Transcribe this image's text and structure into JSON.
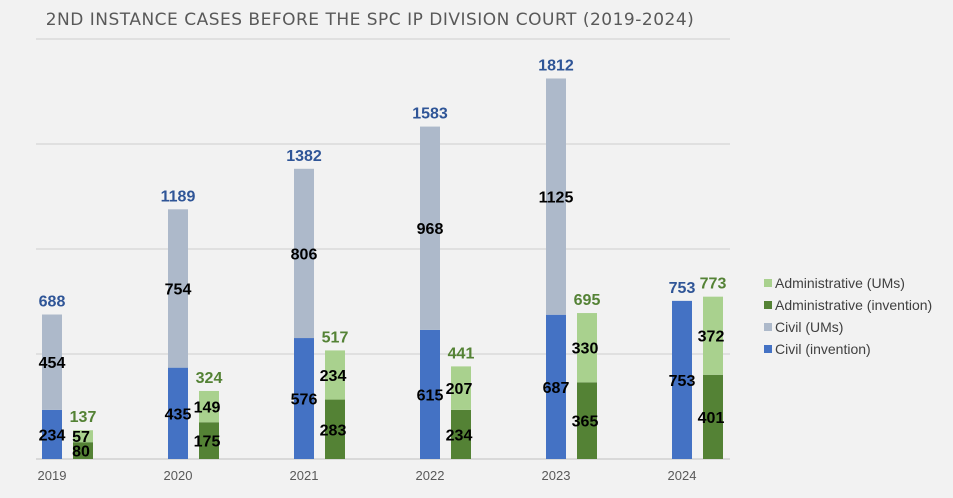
{
  "chart_data": {
    "type": "bar",
    "title": "2ND INSTANCE CASES BEFORE THE SPC IP DIVISION COURT (2019-2024)",
    "categories": [
      "2019",
      "2020",
      "2021",
      "2022",
      "2023",
      "2024"
    ],
    "ylim": [
      0,
      2000
    ],
    "grid": true,
    "legend_position": "right",
    "stacks": [
      {
        "name": "civil",
        "total_color": "#2f5597",
        "totals": [
          688,
          1189,
          1382,
          1583,
          1812,
          753
        ],
        "series": [
          {
            "name": "Civil (invention)",
            "color": "#4472c4",
            "values": [
              234,
              435,
              576,
              615,
              687,
              753
            ]
          },
          {
            "name": "Civil (UMs)",
            "color": "#adb9ca",
            "values": [
              454,
              754,
              806,
              968,
              1125,
              0
            ]
          }
        ]
      },
      {
        "name": "administrative",
        "total_color": "#548235",
        "totals": [
          137,
          324,
          517,
          441,
          695,
          773
        ],
        "series": [
          {
            "name": "Administrative (invention)",
            "color": "#548235",
            "values": [
              80,
              175,
              283,
              234,
              365,
              401
            ]
          },
          {
            "name": "Administrative (UMs)",
            "color": "#a9d18e",
            "values": [
              57,
              149,
              234,
              207,
              330,
              372
            ]
          }
        ]
      }
    ],
    "legend": [
      {
        "label": "Administrative (UMs)",
        "color": "#a9d18e"
      },
      {
        "label": "Administrative (invention)",
        "color": "#548235"
      },
      {
        "label": "Civil (UMs)",
        "color": "#adb9ca"
      },
      {
        "label": "Civil (invention)",
        "color": "#4472c4"
      }
    ]
  }
}
